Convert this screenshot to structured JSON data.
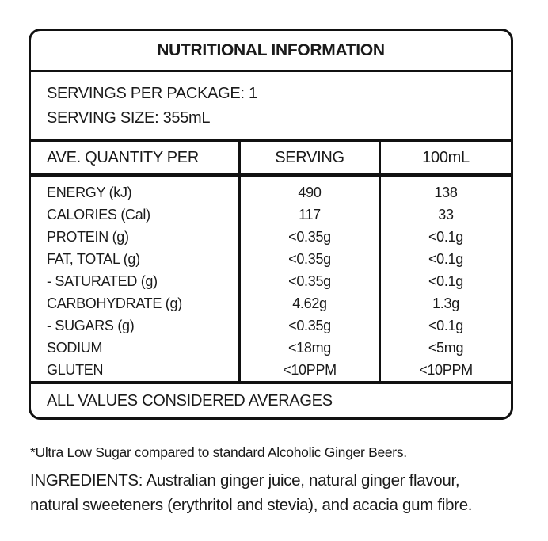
{
  "label": {
    "title": "NUTRITIONAL INFORMATION",
    "servings_per_package": "SERVINGS PER PACKAGE: 1",
    "serving_size": "SERVING SIZE: 355mL",
    "columns": [
      "AVE. QUANTITY PER",
      "SERVING",
      "100mL"
    ],
    "rows": [
      {
        "nutrient": "ENERGY (kJ)",
        "serving": "490",
        "per_100ml": "138"
      },
      {
        "nutrient": "CALORIES (Cal)",
        "serving": "117",
        "per_100ml": "33"
      },
      {
        "nutrient": "PROTEIN (g)",
        "serving": "<0.35g",
        "per_100ml": "<0.1g"
      },
      {
        "nutrient": "FAT, TOTAL (g)",
        "serving": "<0.35g",
        "per_100ml": "<0.1g"
      },
      {
        "nutrient": "- SATURATED (g)",
        "serving": "<0.35g",
        "per_100ml": "<0.1g"
      },
      {
        "nutrient": "CARBOHYDRATE (g)",
        "serving": "4.62g",
        "per_100ml": "1.3g"
      },
      {
        "nutrient": "- SUGARS (g)",
        "serving": "<0.35g",
        "per_100ml": "<0.1g"
      },
      {
        "nutrient": "SODIUM",
        "serving": "<18mg",
        "per_100ml": "<5mg"
      },
      {
        "nutrient": "GLUTEN",
        "serving": "<10PPM",
        "per_100ml": "<10PPM"
      }
    ],
    "footer": "ALL VALUES CONSIDERED AVERAGES"
  },
  "notes": {
    "footnote": "*Ultra Low Sugar compared to standard Alcoholic Ginger Beers.",
    "ingredients": "INGREDIENTS: Australian ginger juice, natural ginger flavour, natural sweeteners (erythritol and stevia), and acacia gum fibre."
  },
  "colors": {
    "background": "#ffffff",
    "text": "#1a1a1a",
    "border": "#111111"
  }
}
